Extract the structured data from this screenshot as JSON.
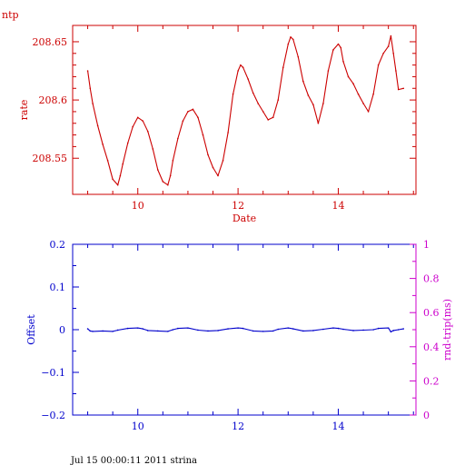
{
  "colors": {
    "top": "#cc0000",
    "offset": "#0000cc",
    "rtrip": "#cc00cc",
    "background": "#ffffff"
  },
  "footer": "Jul 15 00:00:11 2011 strina",
  "chart_data": [
    {
      "type": "line",
      "title": "ntp",
      "xlabel": "Date",
      "ylabel": "rate",
      "xlim": [
        8.7,
        15.55
      ],
      "ylim": [
        208.519,
        208.664
      ],
      "xticks": [
        10,
        12,
        14
      ],
      "xtick_labels": [
        "10",
        "12",
        "14"
      ],
      "yticks": [
        208.55,
        208.6,
        208.65
      ],
      "ytick_labels": [
        "208.55",
        "208.6",
        "208.65"
      ],
      "series": [
        {
          "x": [
            9.0,
            9.05,
            9.1,
            9.2,
            9.3,
            9.4,
            9.5,
            9.6,
            9.65,
            9.7,
            9.8,
            9.9,
            10.0,
            10.1,
            10.2,
            10.3,
            10.4,
            10.5,
            10.6,
            10.65,
            10.7,
            10.8,
            10.9,
            11.0,
            11.1,
            11.2,
            11.3,
            11.4,
            11.5,
            11.6,
            11.7,
            11.8,
            11.9,
            12.0,
            12.05,
            12.1,
            12.2,
            12.3,
            12.4,
            12.5,
            12.6,
            12.7,
            12.8,
            12.9,
            13.0,
            13.05,
            13.1,
            13.2,
            13.3,
            13.4,
            13.5,
            13.6,
            13.7,
            13.8,
            13.9,
            14.0,
            14.05,
            14.1,
            14.2,
            14.3,
            14.4,
            14.5,
            14.6,
            14.7,
            14.8,
            14.9,
            15.0,
            15.05,
            15.1,
            15.15,
            15.2,
            15.3
          ],
          "y": [
            208.625,
            208.61,
            208.597,
            208.578,
            208.562,
            208.548,
            208.532,
            208.527,
            208.535,
            208.545,
            208.563,
            208.577,
            208.585,
            208.582,
            208.573,
            208.558,
            208.54,
            208.53,
            208.527,
            208.535,
            208.548,
            208.567,
            208.582,
            208.59,
            208.592,
            208.585,
            208.57,
            208.553,
            208.542,
            208.535,
            208.548,
            208.572,
            208.605,
            208.625,
            208.63,
            208.628,
            208.618,
            208.606,
            208.597,
            208.59,
            208.583,
            208.585,
            208.6,
            208.628,
            208.648,
            208.654,
            208.652,
            208.637,
            208.616,
            208.604,
            208.596,
            208.58,
            208.597,
            208.625,
            208.643,
            208.648,
            208.645,
            208.633,
            208.62,
            208.614,
            208.605,
            208.597,
            208.59,
            208.605,
            208.63,
            208.64,
            208.646,
            208.655,
            208.64,
            208.625,
            208.609,
            208.61
          ]
        }
      ]
    },
    {
      "type": "line",
      "xlabel": "",
      "ylabel": "Offset",
      "ylabel_right": "rnd-trip(ms)",
      "xlim": [
        8.7,
        15.55
      ],
      "ylim": [
        -0.2,
        0.2
      ],
      "ylim_right": [
        0,
        1
      ],
      "xticks": [
        10,
        12,
        14
      ],
      "xtick_labels": [
        "10",
        "12",
        "14"
      ],
      "yticks": [
        -0.2,
        -0.1,
        0,
        0.1,
        0.2
      ],
      "ytick_labels": [
        "−0.2",
        "−0.1",
        "0",
        "0.1",
        "0.2"
      ],
      "yticks_right": [
        0,
        0.2,
        0.4,
        0.6,
        0.8,
        1
      ],
      "ytick_labels_right": [
        "0",
        "0.2",
        "0.4",
        "0.6",
        "0.8",
        "1"
      ],
      "series": [
        {
          "x": [
            9.0,
            9.05,
            9.1,
            9.3,
            9.5,
            9.6,
            9.8,
            10.0,
            10.1,
            10.2,
            10.4,
            10.6,
            10.7,
            10.8,
            11.0,
            11.2,
            11.4,
            11.6,
            11.8,
            12.0,
            12.1,
            12.3,
            12.5,
            12.7,
            12.8,
            13.0,
            13.1,
            13.3,
            13.5,
            13.7,
            13.9,
            14.0,
            14.1,
            14.3,
            14.5,
            14.7,
            14.8,
            15.0,
            15.05,
            15.1,
            15.2,
            15.3
          ],
          "y": [
            0.002,
            -0.003,
            -0.004,
            -0.003,
            -0.004,
            -0.001,
            0.003,
            0.004,
            0.002,
            -0.002,
            -0.003,
            -0.004,
            0.0,
            0.003,
            0.004,
            -0.001,
            -0.003,
            -0.002,
            0.002,
            0.004,
            0.003,
            -0.003,
            -0.004,
            -0.003,
            0.001,
            0.004,
            0.002,
            -0.003,
            -0.002,
            0.001,
            0.004,
            0.003,
            0.001,
            -0.002,
            -0.001,
            0.0,
            0.003,
            0.004,
            -0.005,
            -0.002,
            0.0,
            0.002
          ]
        }
      ]
    }
  ]
}
